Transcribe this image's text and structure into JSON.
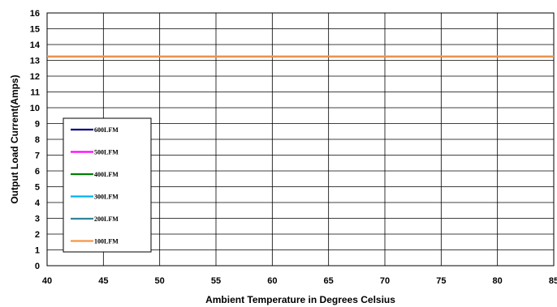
{
  "chart_data": {
    "type": "line",
    "title": "",
    "xlabel": "Ambient Temperature in Degrees Celsius",
    "ylabel": "Output  Load Current(Amps)",
    "xlim": [
      40,
      85
    ],
    "ylim": [
      0,
      16
    ],
    "x_ticks": [
      "40",
      "45",
      "50",
      "55",
      "60",
      "65",
      "70",
      "75",
      "80",
      "85"
    ],
    "y_ticks": [
      "0",
      "1",
      "2",
      "3",
      "4",
      "5",
      "6",
      "7",
      "8",
      "9",
      "10",
      "11",
      "12",
      "13",
      "14",
      "15",
      "16"
    ],
    "grid": true,
    "legend_position": "left",
    "x": [
      40,
      85
    ],
    "series": [
      {
        "name": "600LFM",
        "color": "#00007f",
        "values": [
          13.25,
          13.25
        ]
      },
      {
        "name": "500LFM",
        "color": "#ff00ff",
        "values": [
          13.25,
          13.25
        ]
      },
      {
        "name": "400LFM",
        "color": "#008000",
        "values": [
          13.25,
          13.25
        ]
      },
      {
        "name": "300LFM",
        "color": "#00b0f0",
        "values": [
          13.25,
          13.25
        ]
      },
      {
        "name": "200LFM",
        "color": "#31849b",
        "values": [
          13.25,
          13.25
        ]
      },
      {
        "name": "100LFM",
        "color": "#f79646",
        "values": [
          13.25,
          13.25
        ]
      }
    ]
  }
}
